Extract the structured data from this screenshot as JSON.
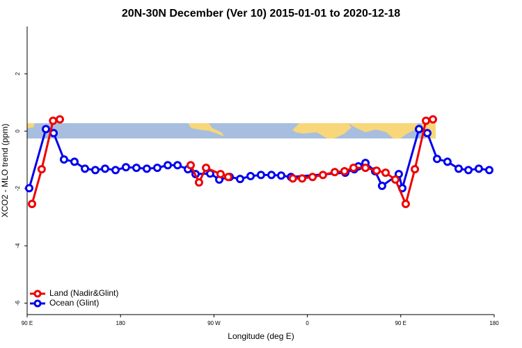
{
  "chart_data": {
    "type": "line",
    "title": "20N-30N December (Ver 10)   2015-01-01 to 2020-12-18",
    "x_label": "Longitude (deg E)",
    "y_label": "XCO2 - MLO trend (ppm)",
    "xlim": [
      90,
      540
    ],
    "ylim": [
      -6.4,
      3.65
    ],
    "xticks": [
      {
        "value": 90,
        "label": "90 E"
      },
      180,
      {
        "value": 270,
        "label": "90 W"
      },
      {
        "value": 360,
        "label": "0"
      },
      {
        "value": 450,
        "label": "90 E"
      },
      {
        "value": 540,
        "label": "180"
      }
    ],
    "yticks": [
      -6,
      -4,
      -2,
      0,
      2
    ],
    "legend": "bottom-left",
    "series": [
      {
        "name": "Ocean (Glint)",
        "color": "#0000ee",
        "x": [
          92,
          108.1,
          115.5,
          125.5,
          135.6,
          145.7,
          155.7,
          165.1,
          175.2,
          185.2,
          195.3,
          205.3,
          215.4,
          225.5,
          234.9,
          244.9,
          252.3,
          266.4,
          275.1,
          285.2,
          295.2,
          305.3,
          315.3,
          325.4,
          334.8,
          344.2,
          396.5,
          405.2,
          409.2,
          416,
          425.3,
          432,
          448.1,
          451.5,
          467.6,
          475.6,
          485,
          495,
          505.8,
          515.2,
          525.2,
          535.3
        ],
        "values": [
          -1.99,
          0.07,
          -0.07,
          -0.99,
          -1.07,
          -1.31,
          -1.36,
          -1.31,
          -1.36,
          -1.26,
          -1.28,
          -1.31,
          -1.28,
          -1.19,
          -1.19,
          -1.33,
          -1.5,
          -1.48,
          -1.69,
          -1.6,
          -1.67,
          -1.57,
          -1.53,
          -1.53,
          -1.55,
          -1.6,
          -1.45,
          -1.33,
          -1.23,
          -1.11,
          -1.4,
          -1.91,
          -1.5,
          -1.99,
          0.07,
          -0.07,
          -0.97,
          -1.07,
          -1.31,
          -1.36,
          -1.31,
          -1.36
        ]
      },
      {
        "name": "Land (Nadir&Glint)",
        "color": "#ee0000",
        "x": [
          94.7,
          104,
          115,
          121.5,
          null,
          247.6,
          255.6,
          262.4,
          276.4,
          283.8,
          null,
          346,
          355,
          365,
          375,
          386.4,
          395.8,
          404.5,
          416,
          426.7,
          435.4,
          444.8,
          454.8,
          463.6,
          474.3,
          481
        ],
        "values": [
          -2.54,
          -1.33,
          0.36,
          0.41,
          null,
          -1.19,
          -1.79,
          -1.28,
          -1.5,
          -1.6,
          null,
          -1.65,
          -1.65,
          -1.6,
          -1.53,
          -1.43,
          -1.4,
          -1.28,
          -1.28,
          -1.38,
          -1.45,
          -1.69,
          -2.54,
          -1.33,
          0.36,
          0.41
        ]
      }
    ]
  }
}
